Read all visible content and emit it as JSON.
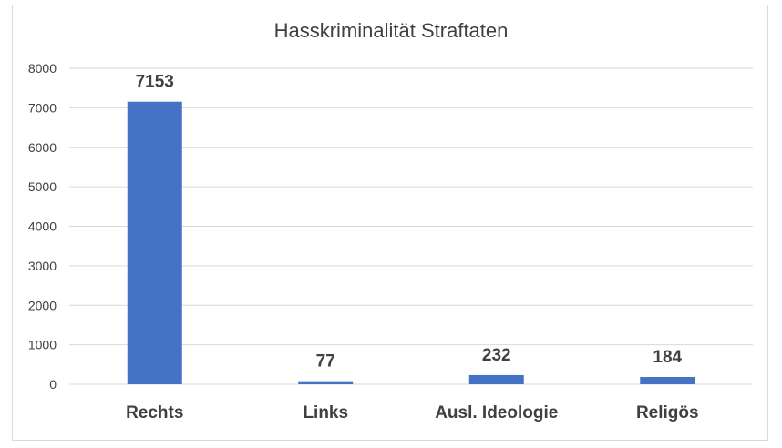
{
  "chart_data": {
    "type": "bar",
    "title": "Hasskriminalität Straftaten",
    "categories": [
      "Rechts",
      "Links",
      "Ausl. Ideologie",
      "Religös"
    ],
    "values": [
      7153,
      77,
      232,
      184
    ],
    "data_labels": [
      "7153",
      "77",
      "232",
      "184"
    ],
    "ylim": [
      0,
      8000
    ],
    "yticks": [
      "0",
      "1000",
      "2000",
      "3000",
      "4000",
      "5000",
      "6000",
      "7000",
      "8000"
    ],
    "grid": true,
    "legend": "none",
    "bar_color": "#4472c4"
  }
}
